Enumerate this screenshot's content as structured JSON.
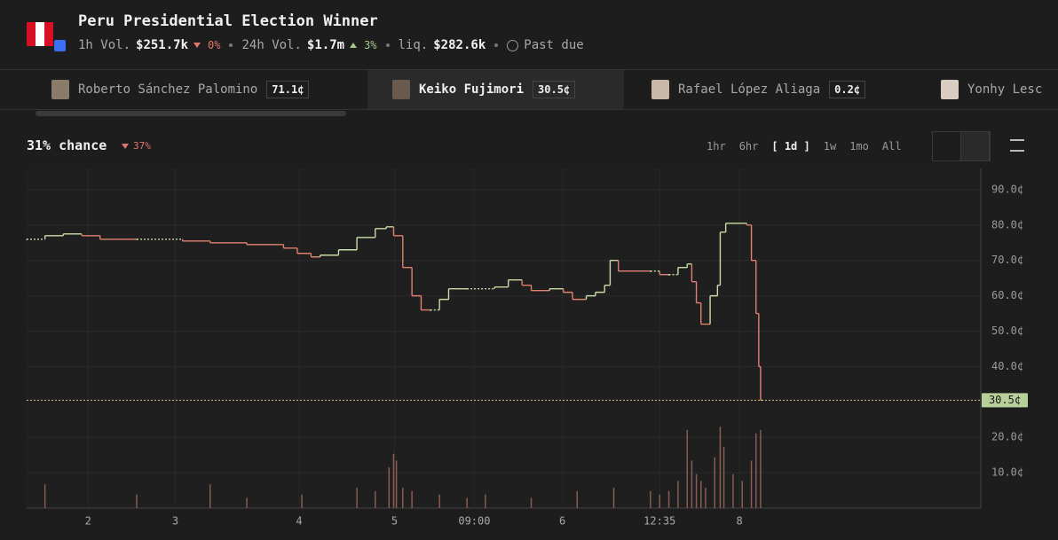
{
  "header": {
    "title": "Peru Presidential Election Winner",
    "stats": [
      {
        "label": "1h Vol.",
        "value": "$251.7k",
        "change": "0%",
        "direction": "down"
      },
      {
        "label": "24h Vol.",
        "value": "$1.7m",
        "change": "3%",
        "direction": "up"
      },
      {
        "label": "liq.",
        "value": "$282.6k"
      }
    ],
    "status": "Past due"
  },
  "outcomes": [
    {
      "name": "Roberto Sánchez Palomino",
      "price": "71.1¢"
    },
    {
      "name": "Keiko Fujimori",
      "price": "30.5¢",
      "selected": true
    },
    {
      "name": "Rafael López Aliaga",
      "price": "0.2¢"
    },
    {
      "name": "Yonhy Lesc"
    }
  ],
  "summary": {
    "chance": "31% chance",
    "change": "37%",
    "direction": "down"
  },
  "ranges": [
    "1hr",
    "6hr",
    "[ 1d ]",
    "1w",
    "1mo",
    "All"
  ],
  "selected_range": 2,
  "chart_data": {
    "type": "candlestick",
    "color_up": "#c9dca6",
    "color_down": "#e0806e",
    "grid": true,
    "x": [
      0,
      2,
      4,
      6,
      8,
      12,
      17,
      20,
      24,
      28,
      29.5,
      31,
      32,
      34,
      36,
      38,
      39.2,
      40,
      41,
      42,
      43,
      44,
      45,
      46,
      48,
      51,
      52.5,
      54,
      55,
      57,
      58.5,
      59.5,
      61,
      62,
      63,
      63.6,
      64.5,
      68,
      69,
      70,
      71,
      72,
      72.5,
      73,
      73.5,
      74.5,
      75.3,
      75.6,
      76.2,
      78.5,
      79,
      79.5,
      79.8,
      80
    ],
    "values": [
      76,
      77,
      77.5,
      77,
      76,
      76,
      75.5,
      75,
      74.5,
      73.5,
      72,
      71,
      71.5,
      73,
      76.5,
      79,
      79.5,
      77,
      68,
      60,
      56,
      56,
      59,
      62,
      62,
      62.5,
      64.5,
      63,
      61.5,
      62,
      61,
      59,
      60,
      61,
      63,
      70,
      67,
      67,
      66,
      66,
      68,
      69,
      64,
      58,
      52,
      60,
      63,
      78,
      80.5,
      80,
      70,
      55,
      40,
      30.5
    ],
    "volume": {
      "color": "#8a5c52",
      "y2lim": [
        0,
        100
      ],
      "x": [
        2,
        12,
        20,
        24,
        30,
        36,
        38,
        39.5,
        40,
        40.3,
        41,
        42,
        45,
        48,
        50,
        55,
        60,
        64,
        68,
        69,
        70,
        71,
        72,
        72.5,
        73,
        73.5,
        74,
        75,
        75.6,
        76,
        77,
        78,
        79,
        79.5,
        80
      ],
      "values": [
        7,
        4,
        7,
        3,
        4,
        6,
        5,
        12,
        16,
        14,
        6,
        5,
        4,
        3,
        4,
        3,
        5,
        6,
        5,
        4,
        5,
        8,
        23,
        14,
        10,
        8,
        6,
        15,
        24,
        18,
        10,
        8,
        14,
        22,
        23
      ]
    },
    "xlim": [
      0,
      104
    ],
    "ylim": [
      0,
      96
    ],
    "xticks": [
      {
        "value": 6.7,
        "label": "2"
      },
      {
        "value": 16.2,
        "label": "3"
      },
      {
        "value": 29.7,
        "label": "4"
      },
      {
        "value": 40.1,
        "label": "5"
      },
      {
        "value": 48.8,
        "label": "09:00"
      },
      {
        "value": 58.4,
        "label": "6"
      },
      {
        "value": 69,
        "label": "12:35"
      },
      {
        "value": 77.7,
        "label": "8"
      }
    ],
    "yticks": [
      {
        "value": 10,
        "label": "10.0¢"
      },
      {
        "value": 20,
        "label": "20.0¢"
      },
      {
        "value": 40,
        "label": "40.0¢"
      },
      {
        "value": 50,
        "label": "50.0¢"
      },
      {
        "value": 60,
        "label": "60.0¢"
      },
      {
        "value": 70,
        "label": "70.0¢"
      },
      {
        "value": 80,
        "label": "80.0¢"
      },
      {
        "value": 90,
        "label": "90.0¢"
      }
    ],
    "current": {
      "value": 30.5,
      "label": "30.5¢",
      "color": "#d8c77a"
    }
  }
}
